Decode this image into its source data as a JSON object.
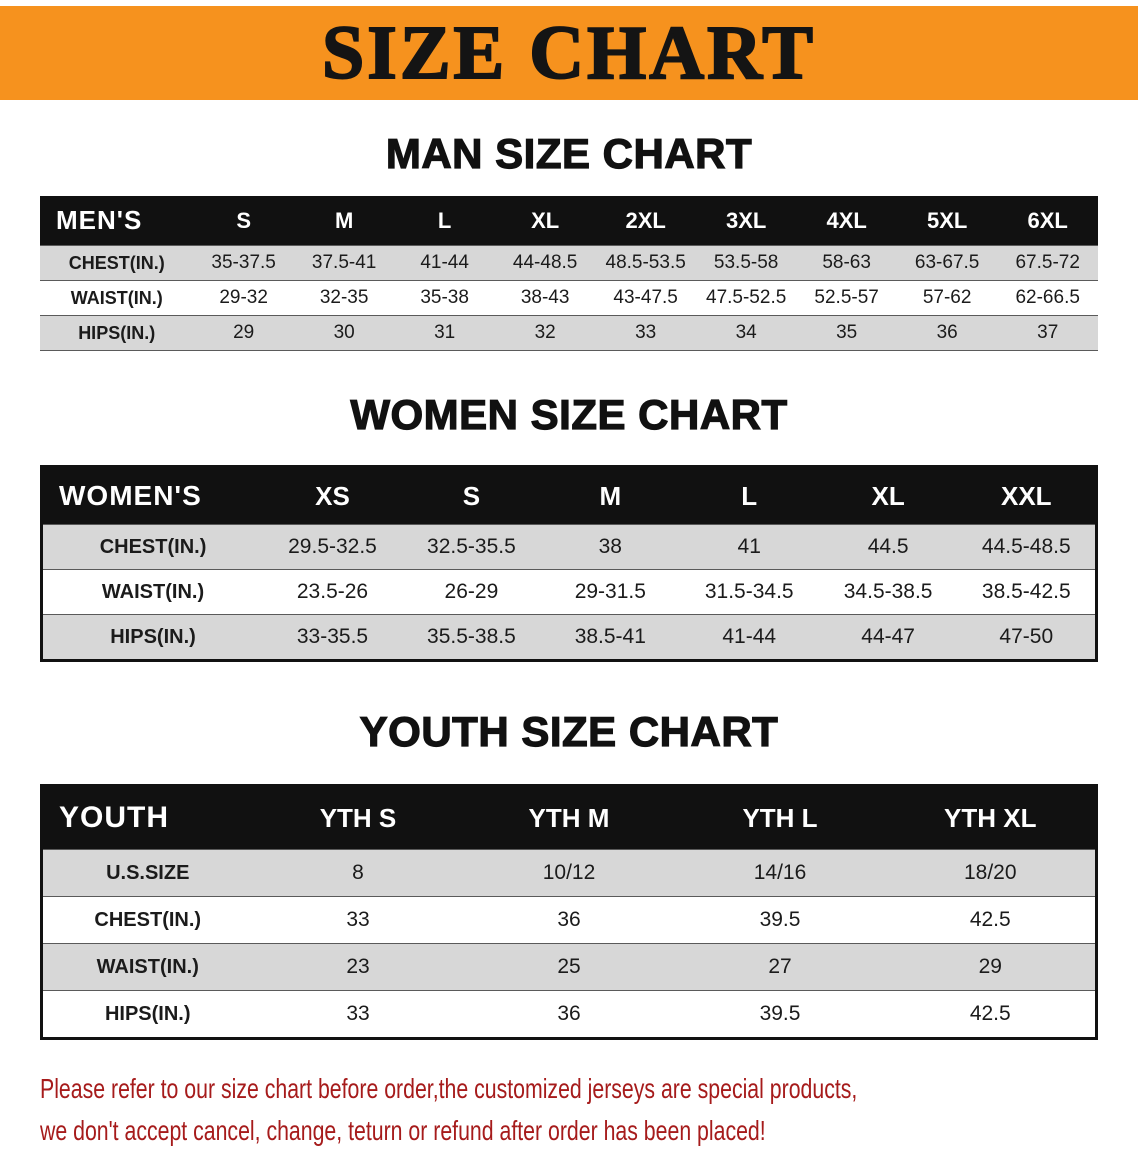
{
  "banner": {
    "title": "SIZE CHART",
    "bg_color": "#f6921e",
    "text_color": "#141414"
  },
  "sections": {
    "men": {
      "heading": "MAN SIZE CHART"
    },
    "women": {
      "heading": "WOMEN SIZE CHART"
    },
    "youth": {
      "heading": "YOUTH SIZE CHART"
    }
  },
  "tables": {
    "men": {
      "corner_label": "MEN'S",
      "columns": [
        "S",
        "M",
        "L",
        "XL",
        "2XL",
        "3XL",
        "4XL",
        "5XL",
        "6XL"
      ],
      "rows": [
        {
          "label": "CHEST(IN.)",
          "values": [
            "35-37.5",
            "37.5-41",
            "41-44",
            "44-48.5",
            "48.5-53.5",
            "53.5-58",
            "58-63",
            "63-67.5",
            "67.5-72"
          ]
        },
        {
          "label": "WAIST(IN.)",
          "values": [
            "29-32",
            "32-35",
            "35-38",
            "38-43",
            "43-47.5",
            "47.5-52.5",
            "52.5-57",
            "57-62",
            "62-66.5"
          ]
        },
        {
          "label": "HIPS(IN.)",
          "values": [
            "29",
            "30",
            "31",
            "32",
            "33",
            "34",
            "35",
            "36",
            "37"
          ]
        }
      ]
    },
    "women": {
      "corner_label": "WOMEN'S",
      "columns": [
        "XS",
        "S",
        "M",
        "L",
        "XL",
        "XXL"
      ],
      "rows": [
        {
          "label": "CHEST(IN.)",
          "values": [
            "29.5-32.5",
            "32.5-35.5",
            "38",
            "41",
            "44.5",
            "44.5-48.5"
          ]
        },
        {
          "label": "WAIST(IN.)",
          "values": [
            "23.5-26",
            "26-29",
            "29-31.5",
            "31.5-34.5",
            "34.5-38.5",
            "38.5-42.5"
          ]
        },
        {
          "label": "HIPS(IN.)",
          "values": [
            "33-35.5",
            "35.5-38.5",
            "38.5-41",
            "41-44",
            "44-47",
            "47-50"
          ]
        }
      ]
    },
    "youth": {
      "corner_label": "YOUTH",
      "columns": [
        "YTH S",
        "YTH M",
        "YTH L",
        "YTH XL"
      ],
      "rows": [
        {
          "label": "U.S.SIZE",
          "values": [
            "8",
            "10/12",
            "14/16",
            "18/20"
          ]
        },
        {
          "label": "CHEST(IN.)",
          "values": [
            "33",
            "36",
            "39.5",
            "42.5"
          ]
        },
        {
          "label": "WAIST(IN.)",
          "values": [
            "23",
            "25",
            "27",
            "29"
          ]
        },
        {
          "label": "HIPS(IN.)",
          "values": [
            "33",
            "36",
            "39.5",
            "42.5"
          ]
        }
      ]
    }
  },
  "footer": {
    "line1": "Please refer to our size chart before order,the customized jerseys are special products,",
    "line2": "we don't accept cancel, change, teturn or refund after order has been placed!",
    "text_color": "#a61b1b"
  },
  "colors": {
    "banner_orange": "#f6921e",
    "table_header_black": "#111111",
    "row_shade_gray": "#d7d7d7",
    "notice_red": "#a61b1b"
  }
}
